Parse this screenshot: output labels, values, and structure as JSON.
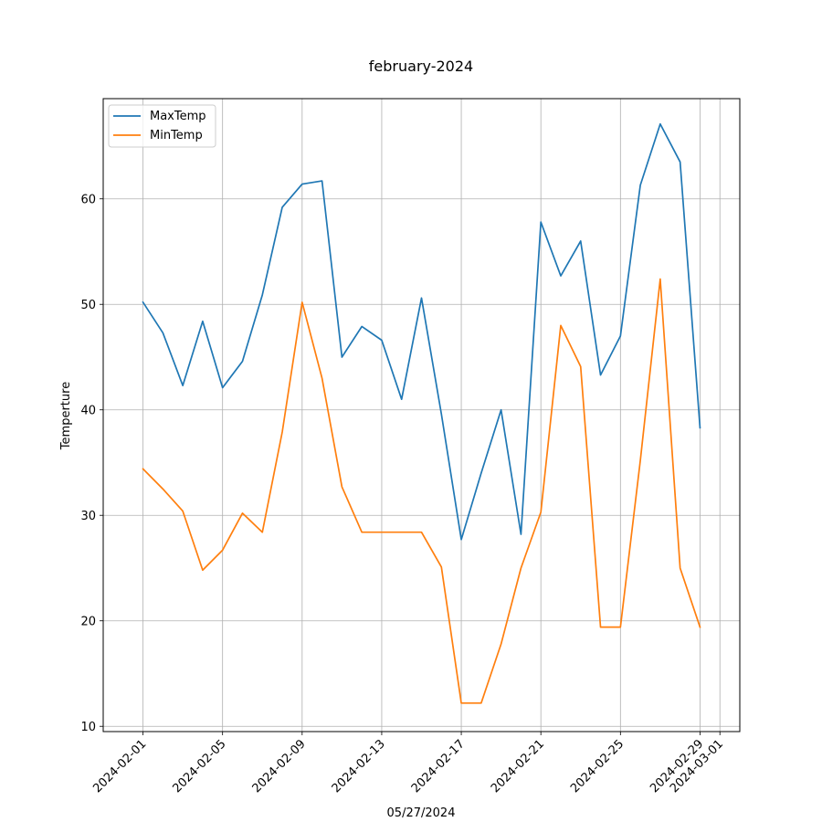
{
  "chart_data": {
    "type": "line",
    "title": "february-2024",
    "xlabel": "05/27/2024",
    "ylabel": "Temperture",
    "x": [
      "2024-02-01",
      "2024-02-02",
      "2024-02-03",
      "2024-02-04",
      "2024-02-05",
      "2024-02-06",
      "2024-02-07",
      "2024-02-08",
      "2024-02-09",
      "2024-02-10",
      "2024-02-11",
      "2024-02-12",
      "2024-02-13",
      "2024-02-14",
      "2024-02-15",
      "2024-02-16",
      "2024-02-17",
      "2024-02-18",
      "2024-02-19",
      "2024-02-20",
      "2024-02-21",
      "2024-02-22",
      "2024-02-23",
      "2024-02-24",
      "2024-02-25",
      "2024-02-26",
      "2024-02-27",
      "2024-02-28",
      "2024-02-29"
    ],
    "xticks": [
      "2024-02-01",
      "2024-02-05",
      "2024-02-09",
      "2024-02-13",
      "2024-02-17",
      "2024-02-21",
      "2024-02-25",
      "2024-02-29",
      "2024-03-01"
    ],
    "xlim": [
      "2024-01-30",
      "2024-03-02"
    ],
    "yticks": [
      10,
      20,
      30,
      40,
      50,
      60
    ],
    "ylim": [
      9.5,
      69.5
    ],
    "grid": true,
    "legend_position": "top-left",
    "series": [
      {
        "name": "MaxTemp",
        "color": "#1f77b4",
        "values": [
          50.2,
          47.3,
          42.3,
          48.4,
          42.1,
          44.6,
          50.9,
          59.2,
          61.4,
          61.7,
          45.0,
          47.9,
          46.6,
          41.0,
          50.6,
          39.6,
          27.7,
          34.0,
          40.0,
          28.2,
          57.8,
          52.7,
          56.0,
          43.3,
          47.0,
          61.3,
          67.1,
          63.5,
          38.3
        ]
      },
      {
        "name": "MinTemp",
        "color": "#ff7f0e",
        "values": [
          34.4,
          32.5,
          30.4,
          24.8,
          26.7,
          30.2,
          28.4,
          37.9,
          50.2,
          43.0,
          32.7,
          28.4,
          28.4,
          28.4,
          28.4,
          25.1,
          12.2,
          12.2,
          17.8,
          25.0,
          30.3,
          48.0,
          44.1,
          19.4,
          19.4,
          35.2,
          52.4,
          25.0,
          19.4
        ]
      }
    ]
  }
}
